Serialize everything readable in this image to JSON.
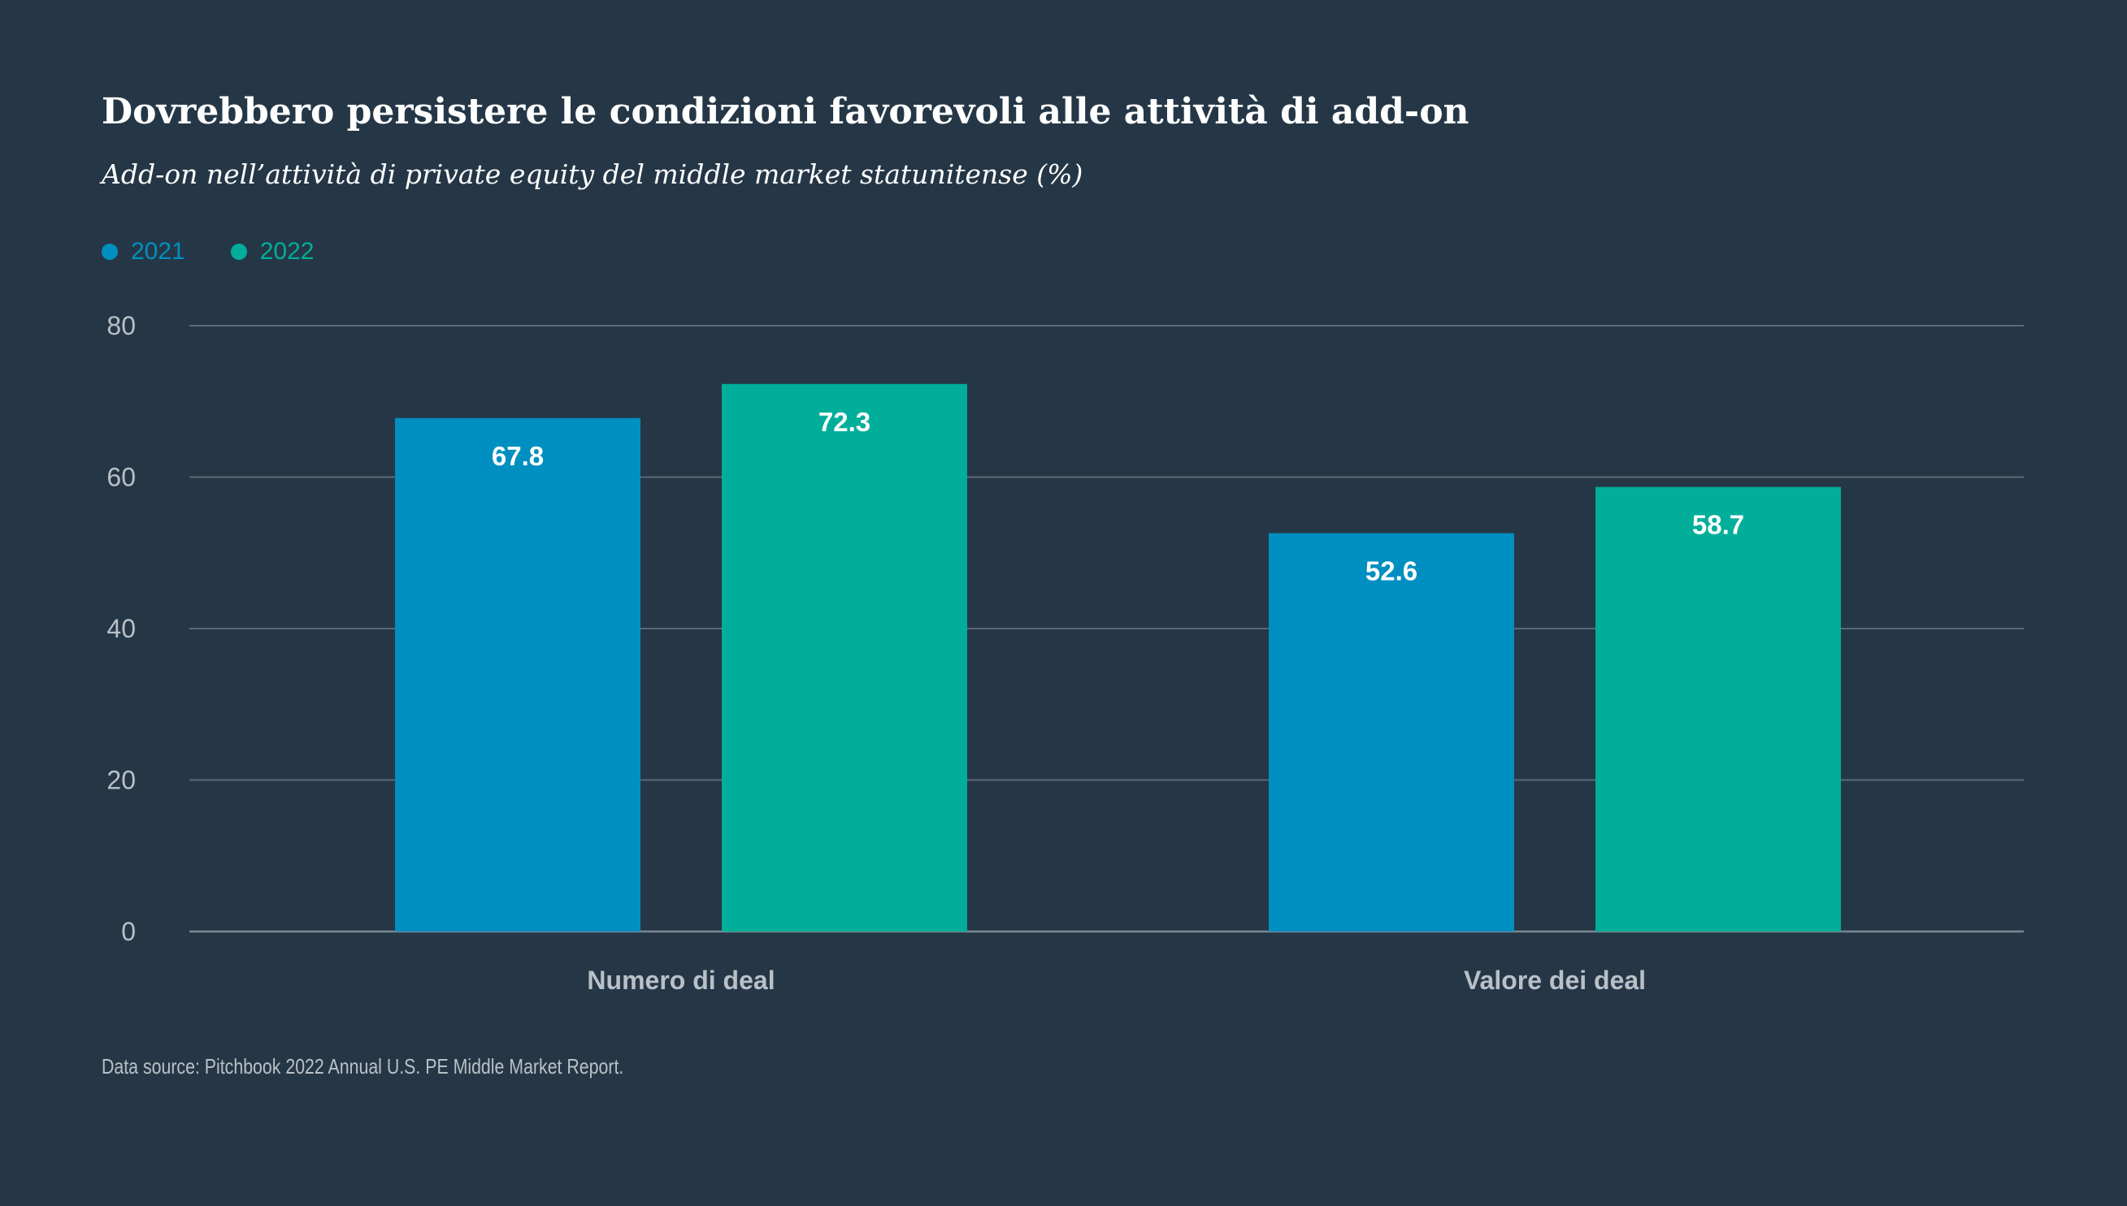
{
  "chart_data": {
    "type": "bar",
    "title": "Dovrebbero persistere le condizioni favorevoli alle attività di add-on",
    "subtitle": "Add-on nell’attività di private equity del middle market statunitense (%)",
    "categories": [
      "Numero di deal",
      "Valore dei deal"
    ],
    "series": [
      {
        "name": "2021",
        "values": [
          67.8,
          52.6
        ],
        "labels": [
          "67.8",
          "52.6"
        ],
        "color": "#008fc1"
      },
      {
        "name": "2022",
        "values": [
          72.3,
          58.7
        ],
        "labels": [
          "72.3",
          "58.7"
        ],
        "color": "#00ae99"
      }
    ],
    "ylim": [
      0,
      80
    ],
    "yticks": [
      0,
      20,
      40,
      60,
      80
    ],
    "ytick_labels": [
      "0",
      "20",
      "40",
      "60",
      "80"
    ],
    "grid": true,
    "legend": "top-left",
    "colors": {
      "background": "#253746",
      "grid": "#5b6a77",
      "axis_text": "#b9c0c7",
      "bar_label": "#ffffff"
    }
  },
  "source": "Data source: Pitchbook 2022 Annual U.S. PE Middle Market Report."
}
